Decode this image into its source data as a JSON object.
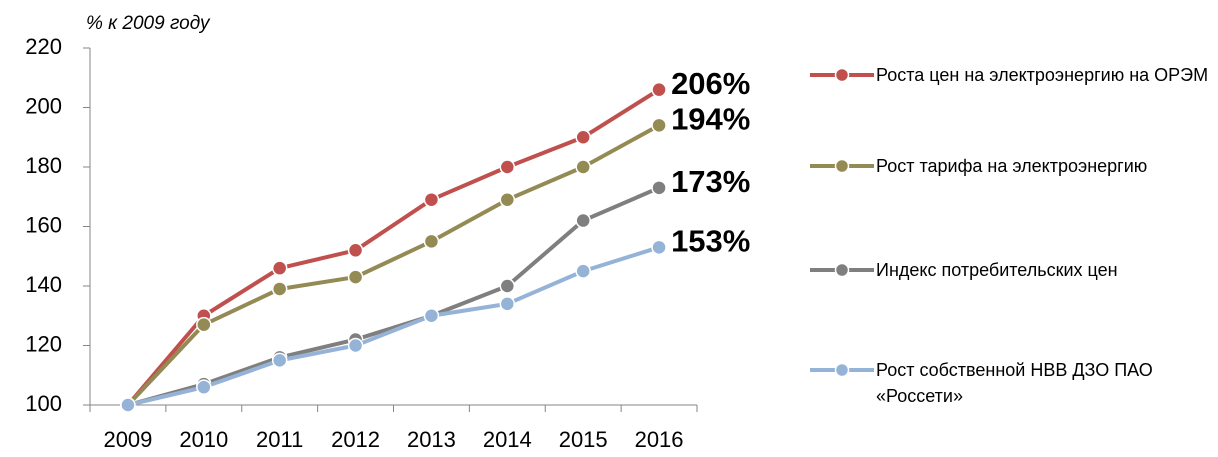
{
  "chart_data": {
    "type": "line",
    "y_label": "% к 2009 году",
    "categories": [
      "2009",
      "2010",
      "2011",
      "2012",
      "2013",
      "2014",
      "2015",
      "2016"
    ],
    "series": [
      {
        "name": "Роста цен на электроэнергию на ОРЭМ",
        "color": "#c0504d",
        "label_color": "#c0504d",
        "values": [
          100,
          130,
          146,
          152,
          169,
          180,
          190,
          206
        ],
        "value_labels": [
          null,
          null,
          null,
          null,
          null,
          null,
          null,
          "206%"
        ]
      },
      {
        "name": "Рост тарифа на электроэнергию",
        "color": "#948a54",
        "label_color": "#4a4526",
        "values": [
          100,
          127,
          139,
          143,
          155,
          169,
          180,
          194
        ],
        "value_labels": [
          null,
          null,
          null,
          null,
          null,
          null,
          null,
          "194%"
        ]
      },
      {
        "name": "Индекс потребительских цен",
        "color": "#7f7f7f",
        "label_color": "#7f7f7f",
        "values": [
          100,
          107,
          116,
          122,
          130,
          140,
          162,
          173
        ],
        "value_labels": [
          null,
          null,
          null,
          null,
          null,
          null,
          null,
          "173%"
        ]
      },
      {
        "name": "Рост собственной НВВ ДЗО ПАО «Россети»",
        "color": "#95b3d7",
        "label_color": "#4f81bd",
        "values": [
          100,
          106,
          115,
          120,
          130,
          134,
          145,
          153
        ],
        "value_labels": [
          null,
          null,
          null,
          null,
          null,
          null,
          null,
          "153%"
        ]
      }
    ],
    "ylim": [
      100,
      220
    ],
    "yticks": [
      100,
      120,
      140,
      160,
      180,
      200,
      220
    ],
    "grid": false,
    "legend": "right"
  }
}
